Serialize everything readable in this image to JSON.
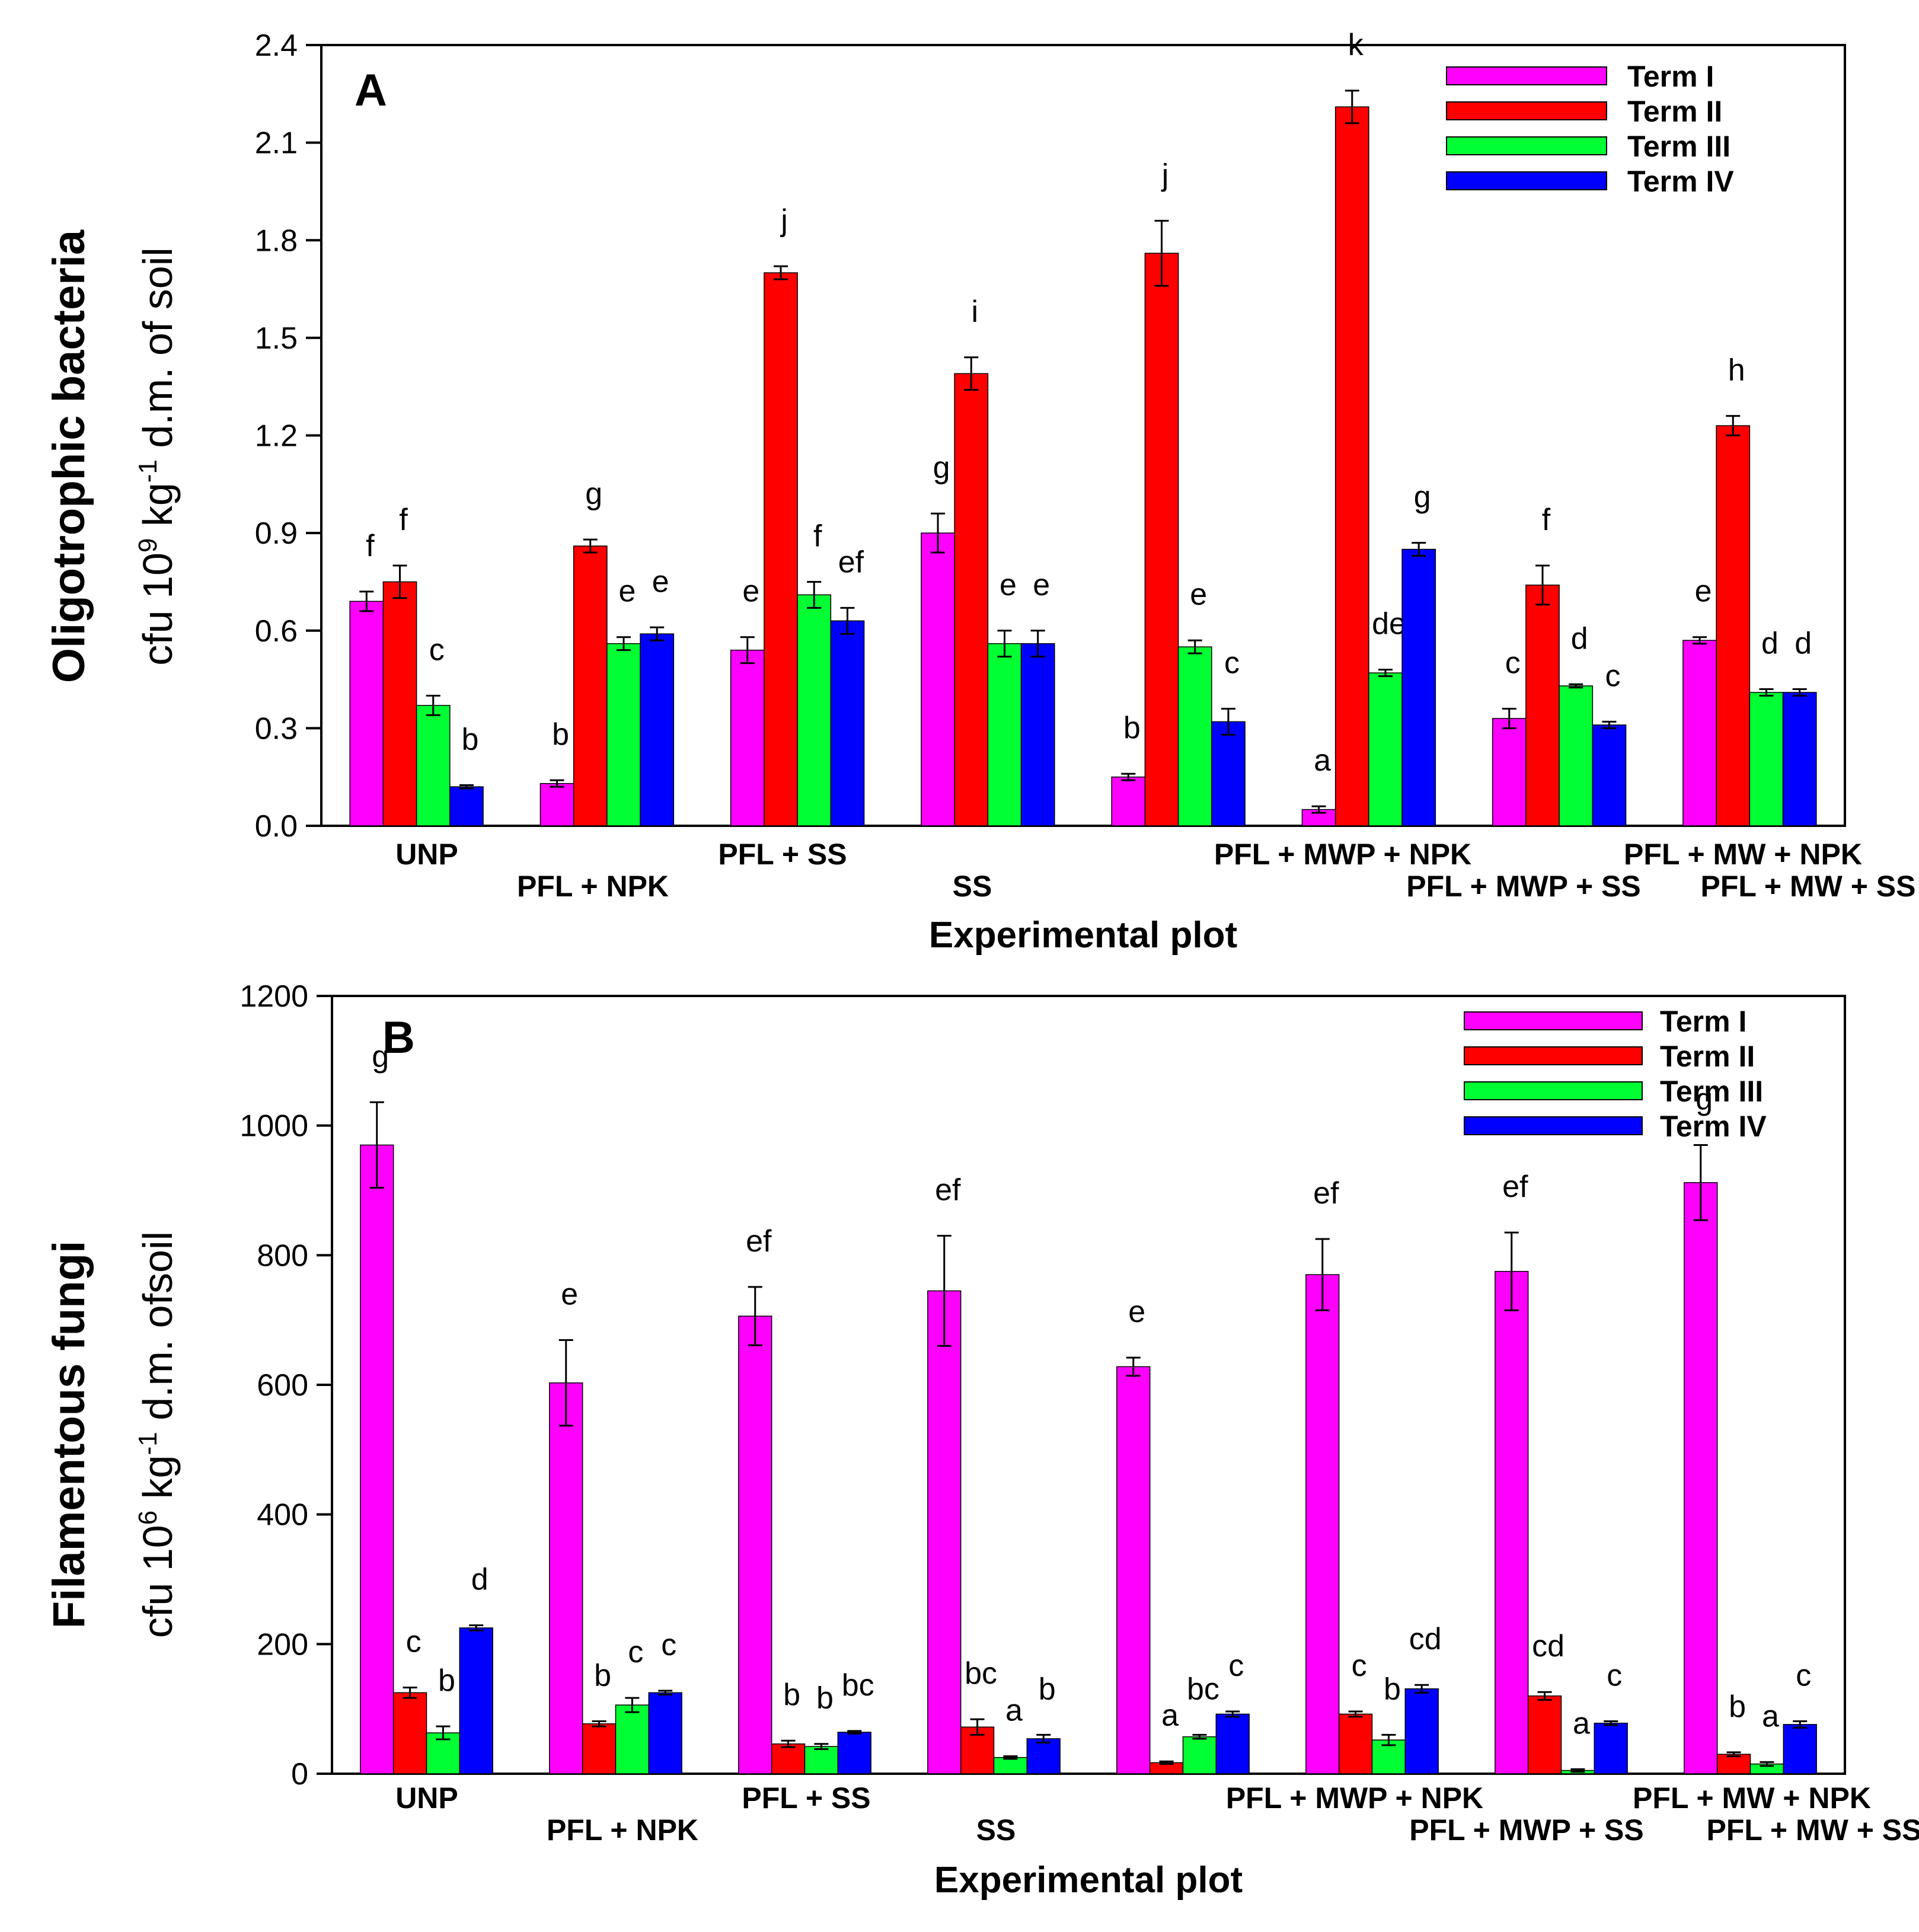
{
  "chart_data": [
    {
      "type": "bar",
      "panel": "A",
      "ylabel_line1": "Oligotrophic bacteria",
      "ylabel_line2": {
        "pre": "cfu 10",
        "sup1": "9",
        "mid": " kg",
        "sup2": "-1",
        "post": " d.m. of soil"
      },
      "xlabel": "Experimental plot",
      "ylim": [
        0,
        2.4
      ],
      "yticks": [
        "0.0",
        "0.3",
        "0.6",
        "0.9",
        "1.2",
        "1.5",
        "1.8",
        "2.1",
        "2.4"
      ],
      "categories": [
        "UNP",
        "PFL + NPK",
        "PFL + SS",
        "SS",
        "PFL + MWP + NPK",
        "PFL + MWP + SS",
        "PFL + MW + NPK",
        "PFL + MW + SS"
      ],
      "series": [
        {
          "name": "Term I",
          "color": "#ff00ff",
          "values": [
            0.69,
            0.13,
            0.54,
            0.9,
            0.15,
            0.05,
            0.33,
            0.57
          ],
          "errors": [
            0.03,
            0.01,
            0.04,
            0.06,
            0.01,
            0.01,
            0.03,
            0.01
          ],
          "letters": [
            "f",
            "b",
            "e",
            "g",
            "b",
            "a",
            "c",
            "e"
          ]
        },
        {
          "name": "Term II",
          "color": "#ff0000",
          "values": [
            0.75,
            0.86,
            1.7,
            1.39,
            1.76,
            2.21,
            0.74,
            1.23
          ],
          "errors": [
            0.05,
            0.02,
            0.02,
            0.05,
            0.1,
            0.05,
            0.06,
            0.03
          ],
          "letters": [
            "f",
            "g",
            "j",
            "i",
            "j",
            "k",
            "f",
            "h"
          ]
        },
        {
          "name": "Term III",
          "color": "#00ff33",
          "values": [
            0.37,
            0.56,
            0.71,
            0.56,
            0.55,
            0.47,
            0.43,
            0.41
          ],
          "errors": [
            0.03,
            0.02,
            0.04,
            0.04,
            0.02,
            0.01,
            0.005,
            0.01
          ],
          "letters": [
            "c",
            "e",
            "f",
            "e",
            "e",
            "de",
            "d",
            "d"
          ]
        },
        {
          "name": "Term IV",
          "color": "#0000ff",
          "values": [
            0.12,
            0.59,
            0.63,
            0.56,
            0.32,
            0.85,
            0.31,
            0.41
          ],
          "errors": [
            0.005,
            0.02,
            0.04,
            0.04,
            0.04,
            0.02,
            0.01,
            0.01
          ],
          "letters": [
            "b",
            "e",
            "ef",
            "e",
            "c",
            "g",
            "c",
            "d"
          ]
        }
      ]
    },
    {
      "type": "bar",
      "panel": "B",
      "ylabel_line1": "Filamentous fungi",
      "ylabel_line2": {
        "pre": "cfu 10",
        "sup1": "6",
        "mid": " kg",
        "sup2": "-1",
        "post": " d.m. ofsoil"
      },
      "xlabel": "Experimental plot",
      "ylim": [
        0,
        1200
      ],
      "yticks": [
        "0",
        "200",
        "400",
        "600",
        "800",
        "1000",
        "1200"
      ],
      "categories": [
        "UNP",
        "PFL + NPK",
        "PFL + SS",
        "SS",
        "PFL + MWP + NPK",
        "PFL + MWP + SS",
        "PFL + MW + NPK",
        "PFL + MW + SS"
      ],
      "series": [
        {
          "name": "Term I",
          "color": "#ff00ff",
          "values": [
            970,
            603,
            706,
            745,
            628,
            770,
            775,
            912
          ],
          "errors": [
            66,
            66,
            45,
            85,
            14,
            55,
            60,
            58
          ],
          "letters": [
            "g",
            "e",
            "ef",
            "ef",
            "e",
            "ef",
            "ef",
            "g"
          ]
        },
        {
          "name": "Term II",
          "color": "#ff0000",
          "values": [
            125,
            77,
            46,
            72,
            17,
            92,
            120,
            30
          ],
          "errors": [
            8,
            4,
            5,
            12,
            2,
            4,
            6,
            3
          ],
          "letters": [
            "c",
            "b",
            "b",
            "bc",
            "a",
            "c",
            "cd",
            "b"
          ]
        },
        {
          "name": "Term III",
          "color": "#00ff33",
          "values": [
            63,
            106,
            42,
            25,
            57,
            52,
            5,
            15
          ],
          "errors": [
            10,
            11,
            4,
            2,
            3,
            8,
            2,
            3
          ],
          "letters": [
            "b",
            "c",
            "b",
            "a",
            "bc",
            "b",
            "a",
            "a"
          ]
        },
        {
          "name": "Term IV",
          "color": "#0000ff",
          "values": [
            225,
            125,
            64,
            54,
            92,
            131,
            78,
            76
          ],
          "errors": [
            4,
            3,
            2,
            6,
            4,
            6,
            3,
            5
          ],
          "letters": [
            "d",
            "c",
            "bc",
            "b",
            "c",
            "cd",
            "c",
            "c"
          ]
        }
      ]
    }
  ]
}
